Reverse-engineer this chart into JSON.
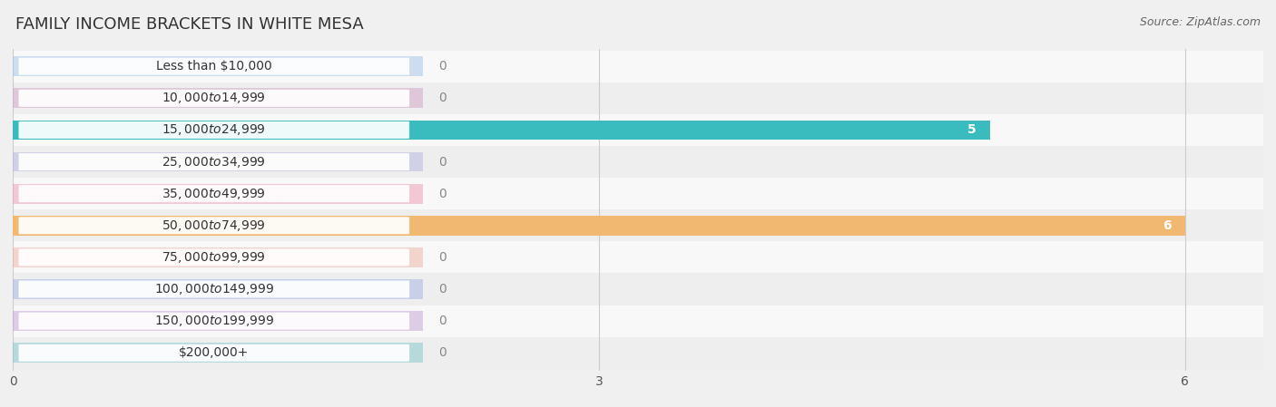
{
  "title": "FAMILY INCOME BRACKETS IN WHITE MESA",
  "source": "Source: ZipAtlas.com",
  "categories": [
    "Less than $10,000",
    "$10,000 to $14,999",
    "$15,000 to $24,999",
    "$25,000 to $34,999",
    "$35,000 to $49,999",
    "$50,000 to $74,999",
    "$75,000 to $99,999",
    "$100,000 to $149,999",
    "$150,000 to $199,999",
    "$200,000+"
  ],
  "values": [
    0,
    0,
    5,
    0,
    0,
    6,
    0,
    0,
    0,
    0
  ],
  "bar_colors": [
    "#a8c8e8",
    "#d4a8c8",
    "#3abcbf",
    "#b8b8e0",
    "#f0a0b8",
    "#f0b870",
    "#f0b8a8",
    "#a8b8e0",
    "#c8a8d8",
    "#88c8cc"
  ],
  "background_color": "#f0f0f0",
  "xlim_max": 6.4,
  "xticks": [
    0,
    3,
    6
  ],
  "bar_height": 0.62,
  "label_color_zero": "#888888",
  "label_color_nonzero": "#ffffff",
  "title_fontsize": 13,
  "label_fontsize": 10,
  "cat_fontsize": 10,
  "tick_fontsize": 10,
  "source_fontsize": 9,
  "grid_color": "#cccccc",
  "row_bg_colors": [
    "#f8f8f8",
    "#eeeeee"
  ]
}
